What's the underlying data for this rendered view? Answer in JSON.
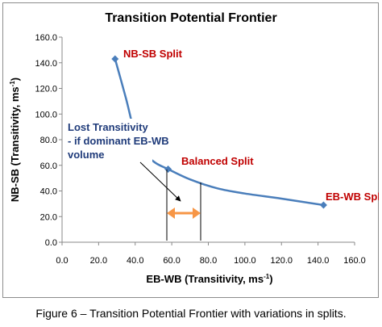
{
  "chart_data": {
    "type": "line",
    "title": "Transition Potential Frontier",
    "xlabel_main": "EB-WB (Transitivity, ms",
    "xlabel_sup": "-1",
    "xlabel_end": ")",
    "ylabel_main": "NB-SB (Transitivity, ms",
    "ylabel_sup": "-1",
    "ylabel_end": ")",
    "xlim": [
      0,
      160
    ],
    "ylim": [
      0,
      160
    ],
    "x_ticks": [
      "0.0",
      "20.0",
      "40.0",
      "60.0",
      "80.0",
      "100.0",
      "120.0",
      "140.0",
      "160.0"
    ],
    "y_ticks": [
      "0.0",
      "20.0",
      "40.0",
      "60.0",
      "80.0",
      "100.0",
      "120.0",
      "140.0",
      "160.0"
    ],
    "grid": false,
    "series": [
      {
        "points": [
          {
            "x": 29,
            "y": 143
          },
          {
            "x": 35,
            "y": 112
          },
          {
            "x": 40,
            "y": 84
          },
          {
            "x": 45,
            "y": 70
          },
          {
            "x": 51,
            "y": 62
          },
          {
            "x": 58,
            "y": 57
          },
          {
            "x": 70,
            "y": 49
          },
          {
            "x": 85,
            "y": 42
          },
          {
            "x": 100,
            "y": 38
          },
          {
            "x": 120,
            "y": 34
          },
          {
            "x": 143,
            "y": 29
          }
        ],
        "markers": [
          {
            "x": 29,
            "y": 143
          },
          {
            "x": 58,
            "y": 57
          },
          {
            "x": 143,
            "y": 29
          }
        ]
      }
    ],
    "annotations": {
      "nb_sb": "NB-SB Split",
      "balanced": "Balanced Split",
      "eb_wb": "EB-WB Split",
      "lost_line1": "Lost Transitivity",
      "lost_line2": "- if dominant EB-WB",
      "lost_line3": "volume"
    },
    "colors": {
      "line": "#4a7ebb",
      "annotation_red": "#c00000",
      "annotation_blue": "#1f3b7a",
      "range_arrow": "#f79646"
    }
  },
  "caption": "Figure 6 – Transition Potential Frontier with variations in splits."
}
